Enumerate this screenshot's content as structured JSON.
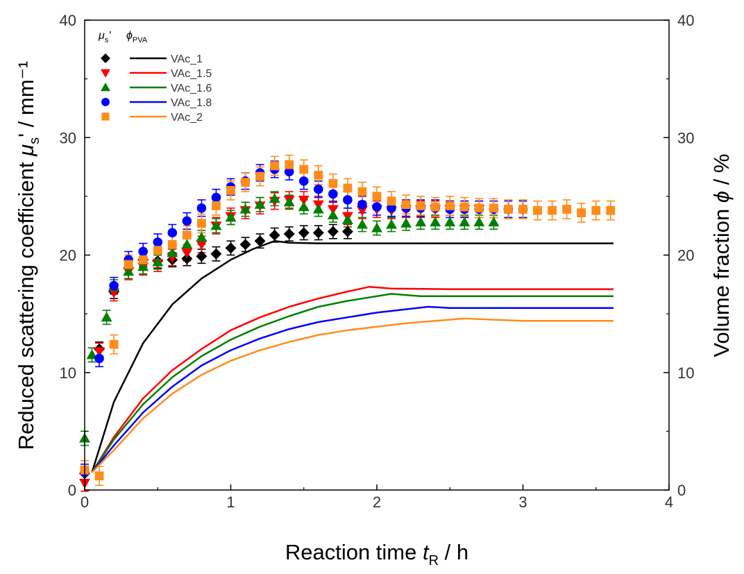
{
  "chart_data": {
    "type": "scatter",
    "x": {
      "label_prefix": "Reaction time ",
      "label_symbol": "t",
      "label_sub": "R",
      "label_suffix": " / h",
      "range": [
        0,
        4
      ],
      "ticks": [
        0,
        1,
        2,
        3,
        4
      ],
      "tick_labels": [
        "0",
        "1",
        "2",
        "3",
        "4"
      ]
    },
    "y_left": {
      "label_prefix": "Reduced scattering coefficient ",
      "label_symbol": "μ",
      "label_sub": "s",
      "label_suffix": "' / mm⁻¹",
      "range": [
        0,
        40
      ],
      "ticks": [
        0,
        10,
        20,
        30,
        40
      ],
      "tick_labels": [
        "0",
        "10",
        "20",
        "30",
        "40"
      ]
    },
    "y_right": {
      "label_prefix": "Volume fraction ",
      "label_symbol": "ϕ",
      "label_suffix": " / %",
      "range": [
        0,
        40
      ],
      "ticks": [
        0,
        10,
        20,
        30,
        40
      ],
      "tick_labels": [
        "0",
        "10",
        "20",
        "30",
        "40"
      ]
    },
    "legend": {
      "position": "top-left",
      "header_scatter": "μ",
      "header_scatter_sub": "s",
      "header_scatter_suffix": "'",
      "header_line": "ϕ",
      "header_line_sub": "PVA"
    },
    "series": [
      {
        "name": "VAc_1",
        "color": "#000000",
        "marker": "diamond",
        "scatter": [
          [
            0.0,
            1.4
          ],
          [
            0.1,
            12
          ],
          [
            0.2,
            16.9
          ],
          [
            0.3,
            18.9
          ],
          [
            0.4,
            19.6
          ],
          [
            0.5,
            19.5
          ],
          [
            0.6,
            19.6
          ],
          [
            0.7,
            19.7
          ],
          [
            0.8,
            19.9
          ],
          [
            0.9,
            20.1
          ],
          [
            1.0,
            20.6
          ],
          [
            1.1,
            20.9
          ],
          [
            1.2,
            21.2
          ],
          [
            1.3,
            21.7
          ],
          [
            1.4,
            21.8
          ],
          [
            1.5,
            21.9
          ],
          [
            1.6,
            21.9
          ],
          [
            1.7,
            22.0
          ],
          [
            1.8,
            22.0
          ]
        ],
        "scatter_err": 0.6,
        "line": [
          [
            0.05,
            1.5
          ],
          [
            0.2,
            7.5
          ],
          [
            0.4,
            12.5
          ],
          [
            0.6,
            15.8
          ],
          [
            0.8,
            18.0
          ],
          [
            1.0,
            19.6
          ],
          [
            1.15,
            20.5
          ],
          [
            1.3,
            21.2
          ],
          [
            1.4,
            21.05
          ],
          [
            1.6,
            21.0
          ],
          [
            2.0,
            21.0
          ],
          [
            3.0,
            21.0
          ],
          [
            3.62,
            21.0
          ]
        ]
      },
      {
        "name": "VAc_1.5",
        "color": "#ff0000",
        "marker": "triangle-down",
        "scatter": [
          [
            0.0,
            0.6
          ],
          [
            0.1,
            11.8
          ],
          [
            0.2,
            16.8
          ],
          [
            0.3,
            18.6
          ],
          [
            0.4,
            19.0
          ],
          [
            0.5,
            19.3
          ],
          [
            0.6,
            19.8
          ],
          [
            0.7,
            20.2
          ],
          [
            0.8,
            20.9
          ],
          [
            0.9,
            22.5
          ],
          [
            1.0,
            23.3
          ],
          [
            1.1,
            23.8
          ],
          [
            1.2,
            24.2
          ],
          [
            1.3,
            24.6
          ],
          [
            1.4,
            24.7
          ],
          [
            1.5,
            24.7
          ],
          [
            1.6,
            24.3
          ],
          [
            1.7,
            23.9
          ],
          [
            1.8,
            23.3
          ],
          [
            1.9,
            23.8
          ],
          [
            2.0,
            23.9
          ],
          [
            2.1,
            23.8
          ],
          [
            2.2,
            23.9
          ],
          [
            2.3,
            23.9
          ],
          [
            2.4,
            23.9
          ],
          [
            2.5,
            23.9
          ],
          [
            2.6,
            23.9
          ],
          [
            2.7,
            23.9
          ]
        ],
        "scatter_err": 0.7,
        "line": [
          [
            0.05,
            1.5
          ],
          [
            0.2,
            4.5
          ],
          [
            0.4,
            7.8
          ],
          [
            0.6,
            10.2
          ],
          [
            0.8,
            12.0
          ],
          [
            1.0,
            13.6
          ],
          [
            1.2,
            14.7
          ],
          [
            1.4,
            15.6
          ],
          [
            1.6,
            16.3
          ],
          [
            1.8,
            16.9
          ],
          [
            1.95,
            17.3
          ],
          [
            2.1,
            17.15
          ],
          [
            2.5,
            17.1
          ],
          [
            3.0,
            17.1
          ],
          [
            3.62,
            17.1
          ]
        ]
      },
      {
        "name": "VAc_1.6",
        "color": "#008000",
        "marker": "triangle-up",
        "scatter": [
          [
            0.0,
            4.4
          ],
          [
            0.05,
            11.5
          ],
          [
            0.15,
            14.7
          ],
          [
            0.2,
            17.3
          ],
          [
            0.3,
            18.6
          ],
          [
            0.4,
            19.0
          ],
          [
            0.5,
            19.4
          ],
          [
            0.6,
            20.2
          ],
          [
            0.7,
            20.9
          ],
          [
            0.8,
            21.5
          ],
          [
            0.9,
            22.5
          ],
          [
            1.0,
            23.2
          ],
          [
            1.1,
            23.9
          ],
          [
            1.2,
            24.3
          ],
          [
            1.3,
            24.8
          ],
          [
            1.4,
            24.5
          ],
          [
            1.5,
            24.1
          ],
          [
            1.6,
            23.9
          ],
          [
            1.7,
            23.4
          ],
          [
            1.8,
            23.0
          ],
          [
            1.9,
            22.6
          ],
          [
            2.0,
            22.3
          ],
          [
            2.1,
            22.6
          ],
          [
            2.2,
            22.7
          ],
          [
            2.3,
            22.8
          ],
          [
            2.4,
            22.8
          ],
          [
            2.5,
            22.8
          ],
          [
            2.6,
            22.8
          ],
          [
            2.7,
            22.8
          ],
          [
            2.8,
            22.8
          ]
        ],
        "scatter_err": 0.6,
        "line": [
          [
            0.05,
            1.5
          ],
          [
            0.2,
            4.3
          ],
          [
            0.4,
            7.3
          ],
          [
            0.6,
            9.6
          ],
          [
            0.8,
            11.4
          ],
          [
            1.0,
            12.8
          ],
          [
            1.2,
            13.9
          ],
          [
            1.4,
            14.8
          ],
          [
            1.6,
            15.6
          ],
          [
            1.8,
            16.1
          ],
          [
            2.1,
            16.7
          ],
          [
            2.3,
            16.5
          ],
          [
            2.6,
            16.5
          ],
          [
            3.0,
            16.5
          ],
          [
            3.62,
            16.5
          ]
        ]
      },
      {
        "name": "VAc_1.8",
        "color": "#0000ff",
        "marker": "circle",
        "scatter": [
          [
            0.0,
            1.5
          ],
          [
            0.1,
            11.2
          ],
          [
            0.2,
            17.4
          ],
          [
            0.3,
            19.6
          ],
          [
            0.4,
            20.3
          ],
          [
            0.5,
            21.1
          ],
          [
            0.6,
            21.9
          ],
          [
            0.7,
            22.9
          ],
          [
            0.8,
            24.0
          ],
          [
            0.9,
            24.9
          ],
          [
            1.0,
            25.8
          ],
          [
            1.1,
            26.3
          ],
          [
            1.2,
            27.0
          ],
          [
            1.3,
            27.3
          ],
          [
            1.4,
            27.1
          ],
          [
            1.5,
            26.3
          ],
          [
            1.6,
            25.6
          ],
          [
            1.7,
            25.2
          ],
          [
            1.8,
            24.7
          ],
          [
            1.9,
            24.3
          ],
          [
            2.0,
            24.1
          ],
          [
            2.1,
            24.0
          ],
          [
            2.2,
            24.0
          ],
          [
            2.3,
            24.0
          ],
          [
            2.4,
            24.0
          ],
          [
            2.5,
            23.9
          ],
          [
            2.6,
            23.9
          ],
          [
            2.7,
            23.9
          ],
          [
            2.8,
            23.9
          ],
          [
            2.9,
            23.9
          ],
          [
            3.0,
            23.9
          ]
        ],
        "scatter_err": 0.7,
        "line": [
          [
            0.05,
            1.5
          ],
          [
            0.2,
            3.8
          ],
          [
            0.4,
            6.6
          ],
          [
            0.6,
            8.8
          ],
          [
            0.8,
            10.6
          ],
          [
            1.0,
            11.9
          ],
          [
            1.2,
            12.9
          ],
          [
            1.4,
            13.7
          ],
          [
            1.6,
            14.3
          ],
          [
            1.8,
            14.7
          ],
          [
            2.0,
            15.1
          ],
          [
            2.35,
            15.6
          ],
          [
            2.5,
            15.5
          ],
          [
            3.0,
            15.5
          ],
          [
            3.62,
            15.5
          ]
        ]
      },
      {
        "name": "VAc_2",
        "color": "#ff8c1a",
        "marker": "square",
        "scatter": [
          [
            0.0,
            1.7
          ],
          [
            0.1,
            1.2
          ],
          [
            0.2,
            12.4
          ],
          [
            0.3,
            19.2
          ],
          [
            0.4,
            19.6
          ],
          [
            0.5,
            20.4
          ],
          [
            0.6,
            20.9
          ],
          [
            0.7,
            21.7
          ],
          [
            0.8,
            22.7
          ],
          [
            0.9,
            24.2
          ],
          [
            1.0,
            25.5
          ],
          [
            1.1,
            26.2
          ],
          [
            1.2,
            26.7
          ],
          [
            1.3,
            27.6
          ],
          [
            1.4,
            27.7
          ],
          [
            1.5,
            27.3
          ],
          [
            1.6,
            26.8
          ],
          [
            1.7,
            26.1
          ],
          [
            1.8,
            25.7
          ],
          [
            1.9,
            25.4
          ],
          [
            2.0,
            25.0
          ],
          [
            2.1,
            24.6
          ],
          [
            2.2,
            24.3
          ],
          [
            2.3,
            24.2
          ],
          [
            2.4,
            24.1
          ],
          [
            2.5,
            24.2
          ],
          [
            2.6,
            24.1
          ],
          [
            2.7,
            24.0
          ],
          [
            2.8,
            24.0
          ],
          [
            2.9,
            23.9
          ],
          [
            3.0,
            23.9
          ],
          [
            3.1,
            23.8
          ],
          [
            3.2,
            23.8
          ],
          [
            3.3,
            23.9
          ],
          [
            3.4,
            23.6
          ],
          [
            3.5,
            23.8
          ],
          [
            3.6,
            23.8
          ]
        ],
        "scatter_err": 0.8,
        "line": [
          [
            0.05,
            1.5
          ],
          [
            0.2,
            3.4
          ],
          [
            0.4,
            6.1
          ],
          [
            0.6,
            8.2
          ],
          [
            0.8,
            9.8
          ],
          [
            1.0,
            11.0
          ],
          [
            1.2,
            11.9
          ],
          [
            1.4,
            12.6
          ],
          [
            1.6,
            13.2
          ],
          [
            1.8,
            13.6
          ],
          [
            2.0,
            13.9
          ],
          [
            2.2,
            14.2
          ],
          [
            2.4,
            14.4
          ],
          [
            2.6,
            14.6
          ],
          [
            2.8,
            14.5
          ],
          [
            3.0,
            14.4
          ],
          [
            3.62,
            14.4
          ]
        ]
      }
    ]
  }
}
